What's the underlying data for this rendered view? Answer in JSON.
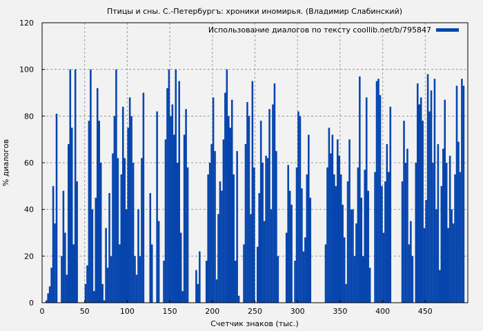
{
  "chart_data": {
    "type": "bar",
    "title": "Птицы и сны. С.-Петербургъ: хроники иномирья. (Владимир Слабинский)",
    "xlabel": "Счетчик знаков (тыс.)",
    "ylabel": "% диалогов",
    "xlim": [
      0,
      500
    ],
    "ylim": [
      0,
      120
    ],
    "xticks": [
      "0",
      "50",
      "100",
      "150",
      "200",
      "250",
      "300",
      "350",
      "400",
      "450"
    ],
    "yticks": [
      "0",
      "20",
      "40",
      "60",
      "80",
      "100",
      "120"
    ],
    "grid": true,
    "legend_position": "top-right",
    "series": [
      {
        "name": "Использование диалогов по тексту coollib.net/b/795847",
        "color": "#0645ad",
        "x": [
          0,
          2,
          4,
          6,
          8,
          10,
          12,
          14,
          16,
          18,
          20,
          22,
          24,
          26,
          28,
          30,
          32,
          34,
          36,
          38,
          40,
          42,
          44,
          46,
          48,
          50,
          52,
          54,
          56,
          58,
          60,
          62,
          64,
          66,
          68,
          70,
          72,
          74,
          76,
          78,
          80,
          82,
          84,
          86,
          88,
          90,
          92,
          94,
          96,
          98,
          100,
          102,
          104,
          106,
          108,
          110,
          112,
          114,
          116,
          118,
          120,
          122,
          124,
          126,
          128,
          130,
          132,
          134,
          136,
          138,
          140,
          142,
          144,
          146,
          148,
          150,
          152,
          154,
          156,
          158,
          160,
          162,
          164,
          166,
          168,
          170,
          172,
          174,
          176,
          178,
          180,
          182,
          184,
          186,
          188,
          190,
          192,
          194,
          196,
          198,
          200,
          202,
          204,
          206,
          208,
          210,
          212,
          214,
          216,
          218,
          220,
          222,
          224,
          226,
          228,
          230,
          232,
          234,
          236,
          238,
          240,
          242,
          244,
          246,
          248,
          250,
          252,
          254,
          256,
          258,
          260,
          262,
          264,
          266,
          268,
          270,
          272,
          274,
          276,
          278,
          280,
          282,
          284,
          286,
          288,
          290,
          292,
          294,
          296,
          298,
          300,
          302,
          304,
          306,
          308,
          310,
          312,
          314,
          316,
          318,
          320,
          322,
          324,
          326,
          328,
          330,
          332,
          334,
          336,
          338,
          340,
          342,
          344,
          346,
          348,
          350,
          352,
          354,
          356,
          358,
          360,
          362,
          364,
          366,
          368,
          370,
          372,
          374,
          376,
          378,
          380,
          382,
          384,
          386,
          388,
          390,
          392,
          394,
          396,
          398,
          400,
          402,
          404,
          406,
          408,
          410,
          412,
          414,
          416,
          418,
          420,
          422,
          424,
          426,
          428,
          430,
          432,
          434,
          436,
          438,
          440,
          442,
          444,
          446,
          448,
          450,
          452,
          454,
          456,
          458,
          460,
          462,
          464,
          466,
          468,
          470,
          472,
          474,
          476,
          478,
          480,
          482,
          484,
          486,
          488,
          490,
          492,
          494
        ],
        "values": [
          0,
          0,
          1,
          4,
          7,
          15,
          50,
          34,
          81,
          0,
          0,
          20,
          48,
          30,
          12,
          68,
          100,
          75,
          25,
          100,
          52,
          0,
          0,
          0,
          0,
          8,
          16,
          78,
          100,
          40,
          5,
          45,
          92,
          78,
          60,
          8,
          1,
          32,
          15,
          47,
          20,
          64,
          80,
          100,
          62,
          25,
          55,
          84,
          62,
          40,
          75,
          88,
          80,
          60,
          20,
          12,
          40,
          20,
          62,
          90,
          0,
          0,
          0,
          47,
          25,
          0,
          0,
          82,
          35,
          0,
          0,
          18,
          70,
          92,
          100,
          80,
          85,
          72,
          100,
          60,
          95,
          30,
          5,
          72,
          83,
          58,
          0,
          0,
          0,
          0,
          14,
          8,
          22,
          0,
          0,
          0,
          18,
          55,
          60,
          68,
          88,
          65,
          10,
          38,
          52,
          48,
          70,
          90,
          100,
          80,
          75,
          87,
          55,
          18,
          65,
          3,
          0,
          0,
          25,
          68,
          86,
          80,
          38,
          95,
          58,
          0,
          24,
          47,
          78,
          60,
          35,
          63,
          62,
          83,
          40,
          85,
          94,
          65,
          20,
          0,
          0,
          0,
          0,
          30,
          59,
          48,
          42,
          0,
          18,
          58,
          82,
          80,
          49,
          22,
          28,
          55,
          72,
          45,
          0,
          0,
          0,
          0,
          0,
          0,
          0,
          0,
          25,
          58,
          75,
          64,
          72,
          55,
          50,
          70,
          63,
          55,
          42,
          28,
          8,
          52,
          70,
          40,
          40,
          20,
          34,
          58,
          97,
          45,
          20,
          57,
          88,
          48,
          15,
          0,
          0,
          56,
          95,
          96,
          89,
          50,
          30,
          52,
          68,
          56,
          84,
          0,
          0,
          0,
          0,
          0,
          0,
          52,
          78,
          60,
          66,
          25,
          35,
          20,
          0,
          60,
          94,
          85,
          88,
          78,
          32,
          44,
          98,
          82,
          91,
          60,
          96,
          40,
          68,
          14,
          50,
          66,
          87,
          60,
          32,
          63,
          40,
          34,
          55,
          93,
          69,
          56,
          96,
          93
        ]
      }
    ]
  }
}
